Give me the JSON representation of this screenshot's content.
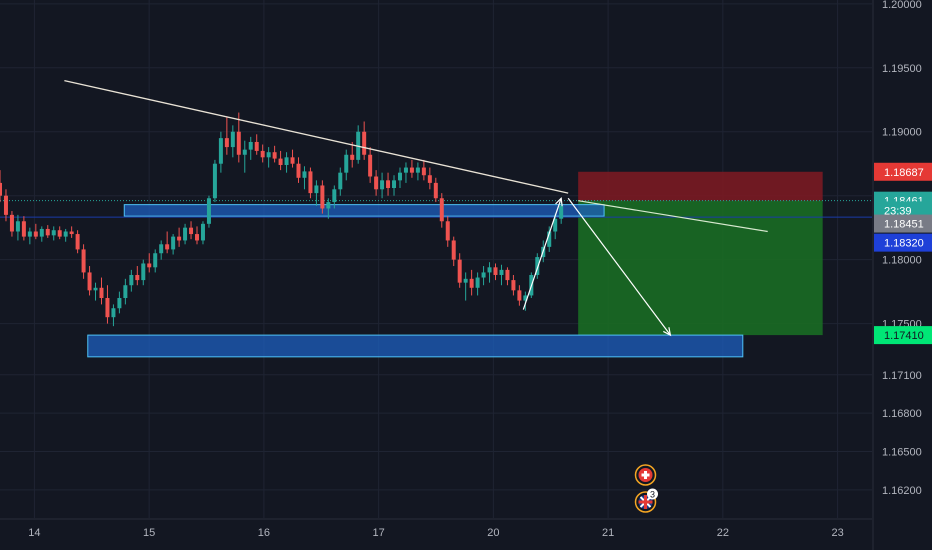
{
  "colors": {
    "background": "#131722",
    "grid": "#1f2433",
    "bull": "#26a69a",
    "bear": "#ef5350",
    "trendline": "#e9e3d6",
    "zone_fill": "#1e5fbf",
    "zone_stroke": "#4fc3f7",
    "stop_fill": "#7a1a22",
    "target_fill": "#1a6b24",
    "projection": "#d7e9cf",
    "current_line": "#1a3ba8"
  },
  "chart_data": {
    "type": "candlestick",
    "x_axis": {
      "labels": [
        {
          "text": "14",
          "day": 14
        },
        {
          "text": "15",
          "day": 15
        },
        {
          "text": "16",
          "day": 16
        },
        {
          "text": "17",
          "day": 17
        },
        {
          "text": "20",
          "day": 18
        },
        {
          "text": "21",
          "day": 19
        },
        {
          "text": "22",
          "day": 20
        },
        {
          "text": "23",
          "day": 21
        }
      ],
      "range": [
        13.7,
        21.3
      ]
    },
    "y_axis": {
      "range": [
        1.1598,
        1.2003
      ],
      "ticks": [
        "1.20000",
        "1.19500",
        "1.19000",
        "1.18500",
        "1.18000",
        "1.17500",
        "1.17100",
        "1.16800",
        "1.16500",
        "1.16200"
      ]
    },
    "price_tags": [
      {
        "label": "1.18687",
        "price": 1.18687,
        "bg": "#e53935",
        "fg": "#ffffff"
      },
      {
        "label": "1.18461",
        "price": 1.18461,
        "bg": "#26a69a",
        "fg": "#ffffff"
      },
      {
        "label": "23:39",
        "price": 1.18385,
        "bg": "#26a69a",
        "fg": "#ffffff"
      },
      {
        "label": "1.18451",
        "price": 1.18282,
        "bg": "#787b86",
        "fg": "#ffffff"
      },
      {
        "label": "1.18320",
        "price": 1.18133,
        "bg": "#1e40d8",
        "fg": "#ffffff"
      },
      {
        "label": "1.17410",
        "price": 1.1741,
        "bg": "#00e676",
        "fg": "#131722"
      }
    ],
    "zones": [
      {
        "x0": 14.783,
        "x1": 18.965,
        "top": 1.1843,
        "bottom": 1.1834
      },
      {
        "x0": 14.465,
        "x1": 20.174,
        "top": 1.1741,
        "bottom": 1.1724
      }
    ],
    "trendline": {
      "x0": 14.261,
      "y0": 1.194,
      "x1": 18.652,
      "y1": 1.1852
    },
    "projection_line": {
      "x0": 18.739,
      "y0": 1.18461,
      "x1": 20.391,
      "y1": 1.1822
    },
    "risk_reward": {
      "x0": 18.739,
      "x1": 20.87,
      "stop": 1.18687,
      "entry": 1.18461,
      "target": 1.1741
    },
    "arrows": [
      {
        "x0": 18.261,
        "y0": 1.1761,
        "x1": 18.591,
        "y1": 1.1848
      },
      {
        "x0": 18.652,
        "y0": 1.1848,
        "x1": 19.543,
        "y1": 1.1741
      }
    ],
    "dotted_price": 1.18461,
    "current_price_line": 1.18332,
    "candles": [
      [
        1.186,
        1.187,
        1.1845,
        1.185
      ],
      [
        1.185,
        1.1855,
        1.183,
        1.1835
      ],
      [
        1.1835,
        1.1838,
        1.1818,
        1.1822
      ],
      [
        1.1822,
        1.1835,
        1.1815,
        1.183
      ],
      [
        1.183,
        1.1834,
        1.1815,
        1.1818
      ],
      [
        1.1818,
        1.1825,
        1.1812,
        1.1822
      ],
      [
        1.1822,
        1.1828,
        1.1816,
        1.1818
      ],
      [
        1.1818,
        1.1826,
        1.1814,
        1.1824
      ],
      [
        1.1824,
        1.1827,
        1.1817,
        1.1819
      ],
      [
        1.1819,
        1.1826,
        1.1815,
        1.1823
      ],
      [
        1.1823,
        1.1826,
        1.1816,
        1.1818
      ],
      [
        1.1818,
        1.1824,
        1.1814,
        1.1822
      ],
      [
        1.1822,
        1.1826,
        1.1817,
        1.182
      ],
      [
        1.182,
        1.1823,
        1.1805,
        1.1808
      ],
      [
        1.1808,
        1.1812,
        1.1785,
        1.179
      ],
      [
        1.179,
        1.1795,
        1.1772,
        1.1776
      ],
      [
        1.1776,
        1.1782,
        1.1768,
        1.1778
      ],
      [
        1.1778,
        1.1786,
        1.1765,
        1.177
      ],
      [
        1.177,
        1.178,
        1.175,
        1.1755
      ],
      [
        1.1755,
        1.1765,
        1.1748,
        1.1762
      ],
      [
        1.1762,
        1.1775,
        1.1758,
        1.177
      ],
      [
        1.177,
        1.1785,
        1.1765,
        1.178
      ],
      [
        1.178,
        1.1792,
        1.1775,
        1.1788
      ],
      [
        1.1788,
        1.1795,
        1.178,
        1.1784
      ],
      [
        1.1784,
        1.18,
        1.178,
        1.1797
      ],
      [
        1.1797,
        1.1805,
        1.179,
        1.1794
      ],
      [
        1.1794,
        1.1808,
        1.179,
        1.1805
      ],
      [
        1.1805,
        1.1815,
        1.18,
        1.1812
      ],
      [
        1.1812,
        1.1822,
        1.1805,
        1.1808
      ],
      [
        1.1808,
        1.182,
        1.1804,
        1.1818
      ],
      [
        1.1818,
        1.1825,
        1.181,
        1.1815
      ],
      [
        1.1815,
        1.1828,
        1.1812,
        1.1825
      ],
      [
        1.1825,
        1.183,
        1.1816,
        1.182
      ],
      [
        1.182,
        1.1826,
        1.1812,
        1.1815
      ],
      [
        1.1815,
        1.183,
        1.1812,
        1.1828
      ],
      [
        1.1828,
        1.185,
        1.1825,
        1.1848
      ],
      [
        1.1848,
        1.1878,
        1.1845,
        1.1875
      ],
      [
        1.1875,
        1.19,
        1.1868,
        1.1895
      ],
      [
        1.1895,
        1.1912,
        1.1882,
        1.1888
      ],
      [
        1.1888,
        1.1905,
        1.188,
        1.19
      ],
      [
        1.19,
        1.1915,
        1.1876,
        1.1882
      ],
      [
        1.1882,
        1.1893,
        1.1868,
        1.1886
      ],
      [
        1.1886,
        1.1896,
        1.1878,
        1.1892
      ],
      [
        1.1892,
        1.1898,
        1.1882,
        1.1885
      ],
      [
        1.1885,
        1.189,
        1.1876,
        1.188
      ],
      [
        1.188,
        1.1888,
        1.1872,
        1.1884
      ],
      [
        1.1884,
        1.1889,
        1.1876,
        1.1879
      ],
      [
        1.1879,
        1.1885,
        1.187,
        1.1874
      ],
      [
        1.1874,
        1.1884,
        1.1868,
        1.188
      ],
      [
        1.188,
        1.1886,
        1.1872,
        1.1875
      ],
      [
        1.1875,
        1.188,
        1.186,
        1.1864
      ],
      [
        1.1864,
        1.1873,
        1.1855,
        1.1869
      ],
      [
        1.1869,
        1.1872,
        1.1848,
        1.1852
      ],
      [
        1.1852,
        1.1862,
        1.1842,
        1.1858
      ],
      [
        1.1858,
        1.1862,
        1.1836,
        1.184
      ],
      [
        1.184,
        1.1848,
        1.1832,
        1.1845
      ],
      [
        1.1845,
        1.1858,
        1.184,
        1.1855
      ],
      [
        1.1855,
        1.1872,
        1.185,
        1.1868
      ],
      [
        1.1868,
        1.1886,
        1.1862,
        1.1882
      ],
      [
        1.1882,
        1.1892,
        1.1872,
        1.1878
      ],
      [
        1.1878,
        1.1905,
        1.1875,
        1.19
      ],
      [
        1.19,
        1.1908,
        1.1878,
        1.1882
      ],
      [
        1.1882,
        1.1888,
        1.186,
        1.1865
      ],
      [
        1.1865,
        1.187,
        1.185,
        1.1855
      ],
      [
        1.1855,
        1.1868,
        1.1848,
        1.1862
      ],
      [
        1.1862,
        1.1868,
        1.185,
        1.1856
      ],
      [
        1.1856,
        1.1866,
        1.185,
        1.1862
      ],
      [
        1.1862,
        1.1872,
        1.1856,
        1.1868
      ],
      [
        1.1868,
        1.1876,
        1.186,
        1.1872
      ],
      [
        1.1872,
        1.1878,
        1.1864,
        1.1868
      ],
      [
        1.1868,
        1.1876,
        1.1862,
        1.1872
      ],
      [
        1.1872,
        1.1878,
        1.1862,
        1.1866
      ],
      [
        1.1866,
        1.1872,
        1.1855,
        1.186
      ],
      [
        1.186,
        1.1864,
        1.1845,
        1.1848
      ],
      [
        1.1848,
        1.1852,
        1.1825,
        1.183
      ],
      [
        1.183,
        1.1834,
        1.181,
        1.1815
      ],
      [
        1.1815,
        1.1818,
        1.1795,
        1.18
      ],
      [
        1.18,
        1.1805,
        1.1778,
        1.1782
      ],
      [
        1.1782,
        1.179,
        1.1768,
        1.1785
      ],
      [
        1.1785,
        1.1792,
        1.1772,
        1.1778
      ],
      [
        1.1778,
        1.179,
        1.1772,
        1.1786
      ],
      [
        1.1786,
        1.1795,
        1.178,
        1.179
      ],
      [
        1.179,
        1.1798,
        1.1782,
        1.1794
      ],
      [
        1.1794,
        1.1797,
        1.1784,
        1.1788
      ],
      [
        1.1788,
        1.1796,
        1.178,
        1.1792
      ],
      [
        1.1792,
        1.1794,
        1.178,
        1.1784
      ],
      [
        1.1784,
        1.1788,
        1.1772,
        1.1776
      ],
      [
        1.1776,
        1.178,
        1.1764,
        1.1768
      ],
      [
        1.1768,
        1.1775,
        1.176,
        1.1772
      ],
      [
        1.1772,
        1.179,
        1.177,
        1.1788
      ],
      [
        1.1788,
        1.1805,
        1.1785,
        1.1802
      ],
      [
        1.1802,
        1.1815,
        1.1798,
        1.181
      ],
      [
        1.181,
        1.1826,
        1.1806,
        1.1822
      ],
      [
        1.1822,
        1.1836,
        1.1816,
        1.1832
      ],
      [
        1.1832,
        1.1845,
        1.1828,
        1.1842
      ]
    ]
  },
  "event_markers": [
    {
      "name": "swiss-flag-icon",
      "badge": ""
    },
    {
      "name": "uk-flag-icon",
      "badge": "3"
    }
  ]
}
